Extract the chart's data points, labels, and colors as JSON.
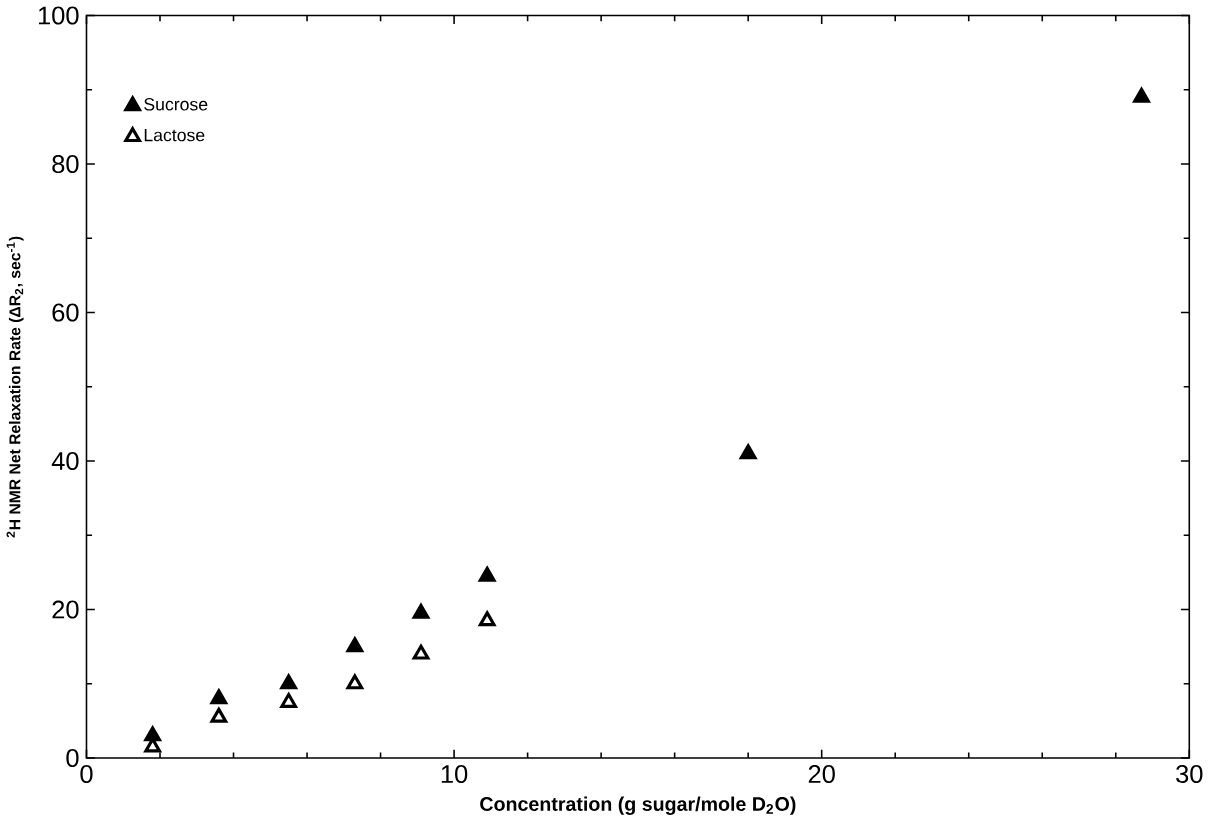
{
  "chart_data": {
    "type": "scatter",
    "xlabel": "Concentration (g sugar/mole D$_{2}$O)",
    "ylabel": "$^{2}$H NMR Net Relaxation Rate (ΔR$_{2}$, sec$^{-1}$)",
    "xlim": [
      0,
      30
    ],
    "ylim": [
      0,
      100
    ],
    "xticks": [
      0,
      10,
      20,
      30
    ],
    "yticks": [
      0,
      20,
      40,
      60,
      80,
      100
    ],
    "legend": "top left",
    "marker": "triangle",
    "grid": false,
    "series": [
      {
        "name": "Sucrose",
        "color": "#000000",
        "x": [
          1.8,
          3.6,
          5.5,
          7.3,
          9.1,
          10.9,
          18.0,
          28.7
        ],
        "values": [
          3,
          8,
          10,
          15,
          19.5,
          24.5,
          41,
          89
        ]
      },
      {
        "name": "Lactose",
        "color": "#000000",
        "x": [
          1.8,
          3.6,
          5.5,
          7.3,
          9.1,
          10.9
        ],
        "values": [
          1.5,
          5.5,
          7.5,
          10,
          14,
          18.5
        ]
      }
    ]
  }
}
